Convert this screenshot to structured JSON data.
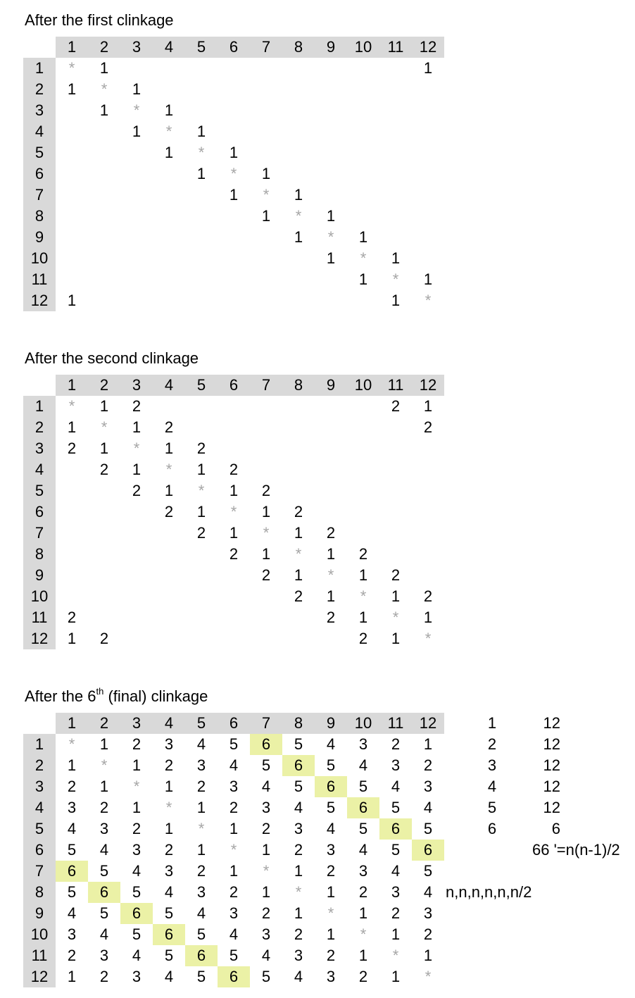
{
  "sections": [
    {
      "title": "After the first clinkage",
      "sup": "",
      "title_rest": "",
      "columns": [
        "1",
        "2",
        "3",
        "4",
        "5",
        "6",
        "7",
        "8",
        "9",
        "10",
        "11",
        "12"
      ],
      "rows": [
        {
          "label": "1",
          "cells": [
            "*",
            "1",
            "",
            "",
            "",
            "",
            "",
            "",
            "",
            "",
            "",
            "1"
          ]
        },
        {
          "label": "2",
          "cells": [
            "1",
            "*",
            "1",
            "",
            "",
            "",
            "",
            "",
            "",
            "",
            "",
            ""
          ]
        },
        {
          "label": "3",
          "cells": [
            "",
            "1",
            "*",
            "1",
            "",
            "",
            "",
            "",
            "",
            "",
            "",
            ""
          ]
        },
        {
          "label": "4",
          "cells": [
            "",
            "",
            "1",
            "*",
            "1",
            "",
            "",
            "",
            "",
            "",
            "",
            ""
          ]
        },
        {
          "label": "5",
          "cells": [
            "",
            "",
            "",
            "1",
            "*",
            "1",
            "",
            "",
            "",
            "",
            "",
            ""
          ]
        },
        {
          "label": "6",
          "cells": [
            "",
            "",
            "",
            "",
            "1",
            "*",
            "1",
            "",
            "",
            "",
            "",
            ""
          ]
        },
        {
          "label": "7",
          "cells": [
            "",
            "",
            "",
            "",
            "",
            "1",
            "*",
            "1",
            "",
            "",
            "",
            ""
          ]
        },
        {
          "label": "8",
          "cells": [
            "",
            "",
            "",
            "",
            "",
            "",
            "1",
            "*",
            "1",
            "",
            "",
            ""
          ]
        },
        {
          "label": "9",
          "cells": [
            "",
            "",
            "",
            "",
            "",
            "",
            "",
            "1",
            "*",
            "1",
            "",
            ""
          ]
        },
        {
          "label": "10",
          "cells": [
            "",
            "",
            "",
            "",
            "",
            "",
            "",
            "",
            "1",
            "*",
            "1",
            ""
          ]
        },
        {
          "label": "11",
          "cells": [
            "",
            "",
            "",
            "",
            "",
            "",
            "",
            "",
            "",
            "1",
            "*",
            "1"
          ]
        },
        {
          "label": "12",
          "cells": [
            "1",
            "",
            "",
            "",
            "",
            "",
            "",
            "",
            "",
            "",
            "1",
            "*"
          ]
        }
      ]
    },
    {
      "title": "After the second clinkage",
      "sup": "",
      "title_rest": "",
      "columns": [
        "1",
        "2",
        "3",
        "4",
        "5",
        "6",
        "7",
        "8",
        "9",
        "10",
        "11",
        "12"
      ],
      "rows": [
        {
          "label": "1",
          "cells": [
            "*",
            "1",
            "2",
            "",
            "",
            "",
            "",
            "",
            "",
            "",
            "2",
            "1"
          ]
        },
        {
          "label": "2",
          "cells": [
            "1",
            "*",
            "1",
            "2",
            "",
            "",
            "",
            "",
            "",
            "",
            "",
            "2"
          ]
        },
        {
          "label": "3",
          "cells": [
            "2",
            "1",
            "*",
            "1",
            "2",
            "",
            "",
            "",
            "",
            "",
            "",
            ""
          ]
        },
        {
          "label": "4",
          "cells": [
            "",
            "2",
            "1",
            "*",
            "1",
            "2",
            "",
            "",
            "",
            "",
            "",
            ""
          ]
        },
        {
          "label": "5",
          "cells": [
            "",
            "",
            "2",
            "1",
            "*",
            "1",
            "2",
            "",
            "",
            "",
            "",
            ""
          ]
        },
        {
          "label": "6",
          "cells": [
            "",
            "",
            "",
            "2",
            "1",
            "*",
            "1",
            "2",
            "",
            "",
            "",
            ""
          ]
        },
        {
          "label": "7",
          "cells": [
            "",
            "",
            "",
            "",
            "2",
            "1",
            "*",
            "1",
            "2",
            "",
            "",
            ""
          ]
        },
        {
          "label": "8",
          "cells": [
            "",
            "",
            "",
            "",
            "",
            "2",
            "1",
            "*",
            "1",
            "2",
            "",
            ""
          ]
        },
        {
          "label": "9",
          "cells": [
            "",
            "",
            "",
            "",
            "",
            "",
            "2",
            "1",
            "*",
            "1",
            "2",
            ""
          ]
        },
        {
          "label": "10",
          "cells": [
            "",
            "",
            "",
            "",
            "",
            "",
            "",
            "2",
            "1",
            "*",
            "1",
            "2"
          ]
        },
        {
          "label": "11",
          "cells": [
            "2",
            "",
            "",
            "",
            "",
            "",
            "",
            "",
            "2",
            "1",
            "*",
            "1"
          ]
        },
        {
          "label": "12",
          "cells": [
            "1",
            "2",
            "",
            "",
            "",
            "",
            "",
            "",
            "",
            "2",
            "1",
            "*"
          ]
        }
      ]
    },
    {
      "title": "After the 6",
      "sup": "th",
      "title_rest": " (final) clinkage",
      "columns": [
        "1",
        "2",
        "3",
        "4",
        "5",
        "6",
        "7",
        "8",
        "9",
        "10",
        "11",
        "12"
      ],
      "rows": [
        {
          "label": "1",
          "cells": [
            "*",
            "1",
            "2",
            "3",
            "4",
            "5",
            "6",
            "5",
            "4",
            "3",
            "2",
            "1"
          ]
        },
        {
          "label": "2",
          "cells": [
            "1",
            "*",
            "1",
            "2",
            "3",
            "4",
            "5",
            "6",
            "5",
            "4",
            "3",
            "2"
          ]
        },
        {
          "label": "3",
          "cells": [
            "2",
            "1",
            "*",
            "1",
            "2",
            "3",
            "4",
            "5",
            "6",
            "5",
            "4",
            "3"
          ]
        },
        {
          "label": "4",
          "cells": [
            "3",
            "2",
            "1",
            "*",
            "1",
            "2",
            "3",
            "4",
            "5",
            "6",
            "5",
            "4"
          ]
        },
        {
          "label": "5",
          "cells": [
            "4",
            "3",
            "2",
            "1",
            "*",
            "1",
            "2",
            "3",
            "4",
            "5",
            "6",
            "5"
          ]
        },
        {
          "label": "6",
          "cells": [
            "5",
            "4",
            "3",
            "2",
            "1",
            "*",
            "1",
            "2",
            "3",
            "4",
            "5",
            "6"
          ]
        },
        {
          "label": "7",
          "cells": [
            "6",
            "5",
            "4",
            "3",
            "2",
            "1",
            "*",
            "1",
            "2",
            "3",
            "4",
            "5"
          ]
        },
        {
          "label": "8",
          "cells": [
            "5",
            "6",
            "5",
            "4",
            "3",
            "2",
            "1",
            "*",
            "1",
            "2",
            "3",
            "4"
          ]
        },
        {
          "label": "9",
          "cells": [
            "4",
            "5",
            "6",
            "5",
            "4",
            "3",
            "2",
            "1",
            "*",
            "1",
            "2",
            "3"
          ]
        },
        {
          "label": "10",
          "cells": [
            "3",
            "4",
            "5",
            "6",
            "5",
            "4",
            "3",
            "2",
            "1",
            "*",
            "1",
            "2"
          ]
        },
        {
          "label": "11",
          "cells": [
            "2",
            "3",
            "4",
            "5",
            "6",
            "5",
            "4",
            "3",
            "2",
            "1",
            "*",
            "1"
          ]
        },
        {
          "label": "12",
          "cells": [
            "1",
            "2",
            "3",
            "4",
            "5",
            "6",
            "5",
            "4",
            "3",
            "2",
            "1",
            "*"
          ]
        }
      ],
      "highlight_value": "6"
    }
  ],
  "summary": {
    "pairs": [
      {
        "a": "1",
        "b": "12"
      },
      {
        "a": "2",
        "b": "12"
      },
      {
        "a": "3",
        "b": "12"
      },
      {
        "a": "4",
        "b": "12"
      },
      {
        "a": "5",
        "b": "12"
      },
      {
        "a": "6",
        "b": "6"
      }
    ],
    "total": "66 '=n(n-1)/2",
    "formula": "n,n,n,n,n,n/2"
  },
  "colors": {
    "header_bg": "#d9d9d9",
    "highlight_bg": "#ebf1a6",
    "star": "#a6a6a6"
  }
}
